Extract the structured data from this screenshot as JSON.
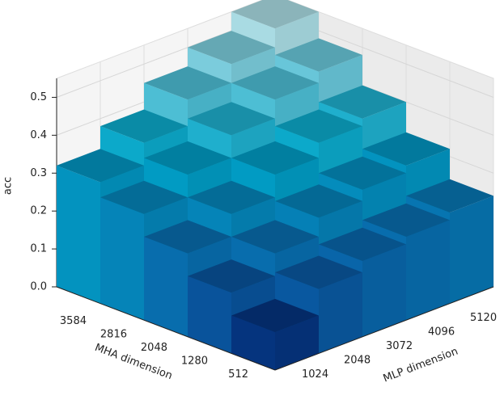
{
  "chart_data": {
    "type": "bar3d",
    "xlabel": "MLP dimension",
    "ylabel": "MHA dimension",
    "zlabel": "acc",
    "x_categories": [
      1024,
      2048,
      3072,
      4096,
      5120
    ],
    "y_categories": [
      512,
      1280,
      2048,
      2816,
      3584
    ],
    "values": [
      [
        0.1,
        0.17,
        0.2,
        0.22,
        0.24
      ],
      [
        0.16,
        0.22,
        0.27,
        0.3,
        0.32
      ],
      [
        0.22,
        0.28,
        0.34,
        0.38,
        0.4
      ],
      [
        0.28,
        0.34,
        0.4,
        0.45,
        0.48
      ],
      [
        0.32,
        0.38,
        0.45,
        0.5,
        0.55
      ]
    ],
    "zlim": [
      0,
      0.55
    ],
    "zticks": [
      {
        "value": 0,
        "label": "0.0"
      },
      0.1,
      0.2,
      0.3,
      0.4,
      0.5
    ],
    "colormap": [
      "#00004d",
      "#0a5fa6",
      "#00a5c8",
      "#a9dbe3"
    ],
    "grid": true
  }
}
